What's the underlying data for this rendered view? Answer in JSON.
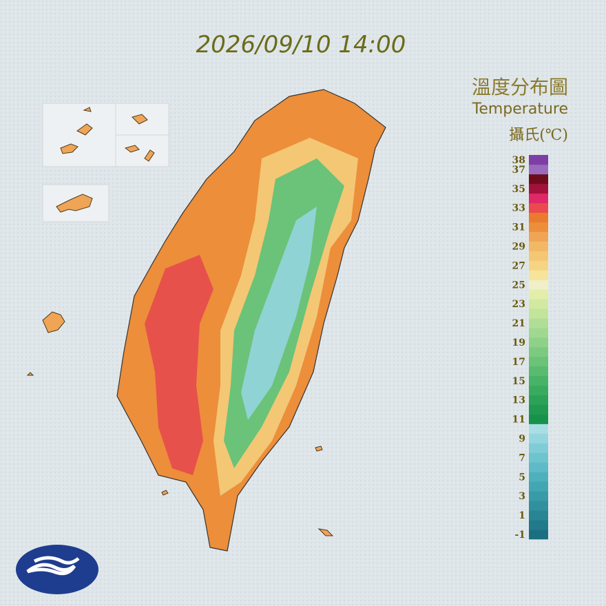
{
  "title": "2026/09/10 14:00",
  "legend": {
    "title": "溫度分布圖",
    "subtitle": "Temperature",
    "unit": "攝氏(℃)",
    "levels": [
      -1,
      0,
      1,
      2,
      3,
      4,
      5,
      6,
      7,
      8,
      9,
      10,
      11,
      12,
      13,
      14,
      15,
      16,
      17,
      18,
      19,
      20,
      21,
      22,
      23,
      24,
      25,
      26,
      27,
      28,
      29,
      30,
      31,
      32,
      33,
      34,
      35,
      36,
      37,
      38
    ],
    "colors": [
      "#1b6f80",
      "#217a8a",
      "#288594",
      "#30909e",
      "#389ba9",
      "#42a6b3",
      "#4eb0bd",
      "#5dbac6",
      "#6dc3ce",
      "#80ccd6",
      "#95d5de",
      "#a9dee5",
      "#17924a",
      "#209a50",
      "#2ba257",
      "#38ab5f",
      "#47b367",
      "#58bb6f",
      "#6ac378",
      "#7cca80",
      "#8ed188",
      "#a0d88f",
      "#b1de96",
      "#c2e49b",
      "#d2e9a2",
      "#e2eeaa",
      "#f1efc8",
      "#f6e49a",
      "#f5d585",
      "#f4c775",
      "#f3b866",
      "#f0a455",
      "#ec8e3a",
      "#e97a2e",
      "#ea4a4e",
      "#e02868",
      "#a3123a",
      "#6f0c1c",
      "#9a6bbd",
      "#7d3fa5"
    ],
    "ticks": [
      38,
      37,
      35,
      33,
      31,
      29,
      27,
      25,
      23,
      21,
      19,
      17,
      15,
      13,
      11,
      9,
      7,
      5,
      3,
      1,
      -1
    ]
  }
}
